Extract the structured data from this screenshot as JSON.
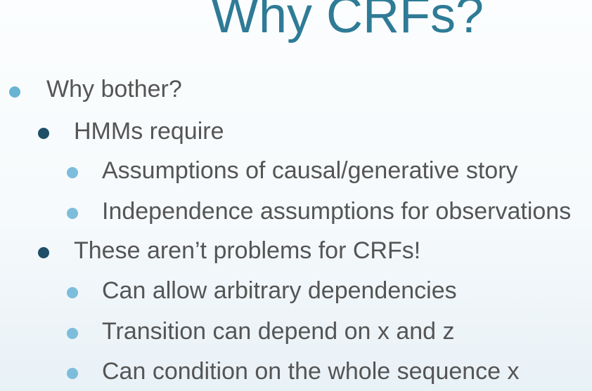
{
  "slide": {
    "title": "Why CRFs?",
    "bullets": [
      {
        "level": 1,
        "text": "Why bother?"
      },
      {
        "level": 2,
        "text": "HMMs require"
      },
      {
        "level": 3,
        "text": "Assumptions of causal/generative story"
      },
      {
        "level": 3,
        "text": "Independence assumptions for observations"
      },
      {
        "level": 2,
        "text": "These aren’t problems for CRFs!"
      },
      {
        "level": 3,
        "text": "Can allow arbitrary dependencies"
      },
      {
        "level": 3,
        "text": "Transition can depend on x and z"
      },
      {
        "level": 3,
        "text": "Can condition on the whole sequence x"
      }
    ],
    "colors": {
      "title": "#2e7b96",
      "text": "#555555",
      "bullet_level1": "#6ab4d3",
      "bullet_level2": "#1f4f68",
      "bullet_level3": "#7cbddb"
    }
  }
}
